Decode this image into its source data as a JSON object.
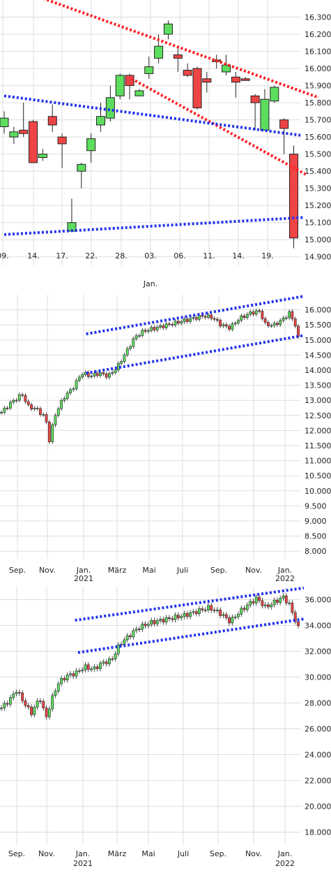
{
  "chart_data": [
    {
      "type": "candlestick",
      "y_ticks": [
        "16.300",
        "16.200",
        "16.100",
        "16.000",
        "15.900",
        "15.800",
        "15.700",
        "15.600",
        "15.500",
        "15.400",
        "15.300",
        "15.200",
        "15.100",
        "15.000",
        "14.900"
      ],
      "ylim": [
        14.85,
        16.4
      ],
      "x_ticks": [
        {
          "label": "09.",
          "sub": ""
        },
        {
          "label": "14.",
          "sub": ""
        },
        {
          "label": "17.",
          "sub": ""
        },
        {
          "label": "22.",
          "sub": ""
        },
        {
          "label": "28.",
          "sub": ""
        },
        {
          "label": "03.",
          "sub": "Jan."
        },
        {
          "label": "06.",
          "sub": ""
        },
        {
          "label": "11.",
          "sub": ""
        },
        {
          "label": "14.",
          "sub": ""
        },
        {
          "label": "19.",
          "sub": ""
        }
      ],
      "candles": [
        [
          15.66,
          15.71,
          15.75,
          15.62
        ],
        [
          15.6,
          15.63,
          15.66,
          15.56
        ],
        [
          15.64,
          15.62,
          15.8,
          15.6
        ],
        [
          15.69,
          15.45,
          15.7,
          15.45
        ],
        [
          15.48,
          15.5,
          15.53,
          15.46
        ],
        [
          15.72,
          15.67,
          15.79,
          15.63
        ],
        [
          15.6,
          15.56,
          15.62,
          15.42
        ],
        [
          15.05,
          15.1,
          15.24,
          15.05
        ],
        [
          15.4,
          15.44,
          15.45,
          15.3
        ],
        [
          15.52,
          15.59,
          15.62,
          15.45
        ],
        [
          15.67,
          15.72,
          15.8,
          15.63
        ],
        [
          15.71,
          15.83,
          15.9,
          15.69
        ],
        [
          15.84,
          15.96,
          15.97,
          15.82
        ],
        [
          15.96,
          15.9,
          15.97,
          15.82
        ],
        [
          15.84,
          15.87,
          15.88,
          15.84
        ],
        [
          15.97,
          16.01,
          16.07,
          15.94
        ],
        [
          16.06,
          16.13,
          16.2,
          16.03
        ],
        [
          16.2,
          16.26,
          16.28,
          16.17
        ],
        [
          16.08,
          16.06,
          16.13,
          15.98
        ],
        [
          15.99,
          15.96,
          16.03,
          15.95
        ],
        [
          16.0,
          15.77,
          16.01,
          15.76
        ],
        [
          15.94,
          15.92,
          15.98,
          15.86
        ],
        [
          16.05,
          16.04,
          16.08,
          16.0
        ],
        [
          15.98,
          16.02,
          16.08,
          15.96
        ],
        [
          15.95,
          15.92,
          15.98,
          15.83
        ],
        [
          15.94,
          15.93,
          15.95,
          15.93
        ],
        [
          15.84,
          15.8,
          15.85,
          15.64
        ],
        [
          15.64,
          15.82,
          15.88,
          15.64
        ],
        [
          15.81,
          15.89,
          15.9,
          15.8
        ],
        [
          15.7,
          15.65,
          15.71,
          15.5
        ],
        [
          15.5,
          15.01,
          15.55,
          14.95
        ]
      ],
      "trendlines": [
        {
          "color": "#ff2020",
          "points": [
            [
              -0.45,
              16.5
            ],
            [
              32.6,
              15.83
            ]
          ]
        },
        {
          "color": "#ff2020",
          "points": [
            [
              13.2,
              15.94
            ],
            [
              31.3,
              15.38
            ]
          ]
        },
        {
          "color": "#2233ee",
          "points": [
            [
              0,
              15.84
            ],
            [
              30.7,
              15.61
            ]
          ]
        },
        {
          "color": "#2233ee",
          "points": [
            [
              0,
              15.03
            ],
            [
              31.1,
              15.13
            ]
          ]
        }
      ]
    },
    {
      "type": "candlestick",
      "y_ticks": [
        "16.000",
        "15.500",
        "15.000",
        "14.500",
        "14.000",
        "13.500",
        "13.000",
        "12.500",
        "12.000",
        "11.500",
        "11.000",
        "10.500",
        "10.000",
        "9.500",
        "9.000",
        "8.500",
        "8.000"
      ],
      "ylim": [
        7.75,
        16.5
      ],
      "x_ticks": [
        {
          "label": "Sep.",
          "sub": ""
        },
        {
          "label": "Nov.",
          "sub": ""
        },
        {
          "label": "Jan.",
          "sub": "2021"
        },
        {
          "label": "März",
          "sub": ""
        },
        {
          "label": "Mai",
          "sub": ""
        },
        {
          "label": "Juli",
          "sub": ""
        },
        {
          "label": "Sep.",
          "sub": ""
        },
        {
          "label": "Nov.",
          "sub": ""
        },
        {
          "label": "Jan.",
          "sub": "2022"
        }
      ],
      "trendlines": [
        {
          "color": "#2233ee",
          "points": [
            [
              0.277,
              15.2
            ],
            [
              1.0,
              16.45
            ]
          ]
        },
        {
          "color": "#2233ee",
          "points": [
            [
              0.277,
              13.9
            ],
            [
              1.0,
              15.15
            ]
          ]
        }
      ]
    },
    {
      "type": "candlestick",
      "y_ticks": [
        "36.000",
        "34.000",
        "32.000",
        "30.000",
        "28.000",
        "26.000",
        "24.000",
        "22.000",
        "20.000",
        "18.000"
      ],
      "ylim": [
        17.0,
        37.0
      ],
      "x_ticks": [
        {
          "label": "Sep.",
          "sub": ""
        },
        {
          "label": "Nov.",
          "sub": ""
        },
        {
          "label": "Jan.",
          "sub": "2021"
        },
        {
          "label": "März",
          "sub": ""
        },
        {
          "label": "Mai",
          "sub": ""
        },
        {
          "label": "Juli",
          "sub": ""
        },
        {
          "label": "Sep.",
          "sub": ""
        },
        {
          "label": "Nov.",
          "sub": ""
        },
        {
          "label": "Jan.",
          "sub": "2022"
        }
      ],
      "trendlines": [
        {
          "color": "#2233ee",
          "points": [
            [
              0.24,
              34.4
            ],
            [
              1.0,
              36.9
            ]
          ]
        },
        {
          "color": "#2233ee",
          "points": [
            [
              0.25,
              31.9
            ],
            [
              1.0,
              34.5
            ]
          ]
        }
      ]
    }
  ]
}
